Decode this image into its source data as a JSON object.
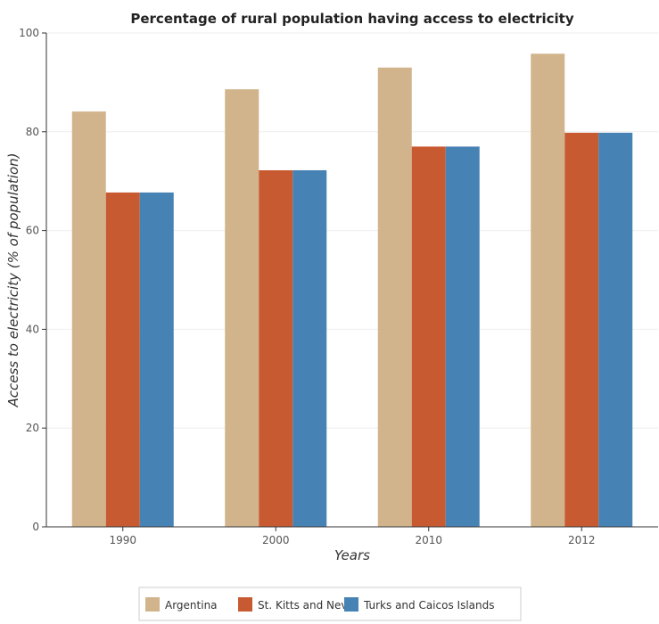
{
  "chart_data": {
    "type": "bar",
    "title": "Percentage of rural population having access to electricity",
    "xlabel": "Years",
    "ylabel": "Access to electricity (% of population)",
    "categories": [
      "1990",
      "2000",
      "2010",
      "2012"
    ],
    "ylim": [
      0,
      100
    ],
    "yticks": [
      0,
      20,
      40,
      60,
      80,
      100
    ],
    "grid": true,
    "legend_position": "bottom-center",
    "series": [
      {
        "name": "Argentina",
        "color": "#d2b48c",
        "values": [
          84.1,
          88.6,
          93.0,
          95.8
        ]
      },
      {
        "name": "St. Kitts and Nevis",
        "color": "#c85a32",
        "values": [
          67.7,
          72.2,
          77.0,
          79.8
        ]
      },
      {
        "name": "Turks and Caicos Islands",
        "color": "#4682b4",
        "values": [
          67.7,
          72.2,
          77.0,
          79.8
        ]
      }
    ]
  }
}
